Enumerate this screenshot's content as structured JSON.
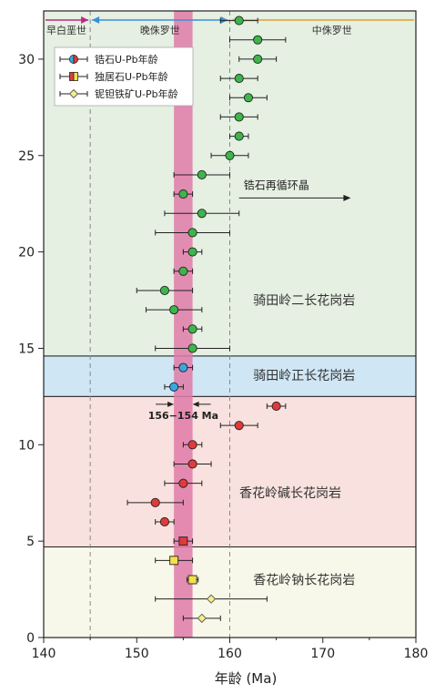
{
  "chart_data": {
    "type": "scatter",
    "xlabel": "年龄 (Ma)",
    "xlim": [
      140,
      180
    ],
    "ylim": [
      0,
      32.5
    ],
    "x_ticks": [
      140,
      150,
      160,
      170,
      180
    ],
    "y_ticks": [
      0,
      5,
      10,
      15,
      20,
      25,
      30
    ],
    "epochs": [
      {
        "name": "早白垩世",
        "from": 140,
        "to": 145,
        "color": "#c0267f"
      },
      {
        "name": "晚侏罗世",
        "from": 145,
        "to": 160,
        "color": "#3a8fd6"
      },
      {
        "name": "中侏罗世",
        "from": 160,
        "to": 180,
        "color": "#e0a030"
      }
    ],
    "boundaries": [
      145,
      160
    ],
    "highlight_band": {
      "from": 154,
      "to": 156,
      "label": "156−154 Ma",
      "color": "#e07aa8"
    },
    "annotation": {
      "text": "锆石再循环晶",
      "arrow_from": 161,
      "arrow_to": 173,
      "y": 22.8
    },
    "zones": [
      {
        "name": "骑田岭二长花岗岩",
        "y_from": 14.6,
        "y_to": 32.5,
        "color": "#e5efe2",
        "label_x": 168,
        "label_y": 17.5
      },
      {
        "name": "骑田岭正长花岗岩",
        "y_from": 12.5,
        "y_to": 14.6,
        "color": "#cfe6f4",
        "label_x": 168,
        "label_y": 13.6
      },
      {
        "name": "香花岭碱长花岗岩",
        "y_from": 4.7,
        "y_to": 12.5,
        "color": "#f8e1de",
        "label_x": 166.5,
        "label_y": 7.5
      },
      {
        "name": "香花岭钠长花岗岩",
        "y_from": 0,
        "y_to": 4.7,
        "color": "#f8f8ea",
        "label_x": 168,
        "label_y": 3.0
      }
    ],
    "legend": [
      {
        "name": "锆石U-Pb年龄",
        "marker": "circle",
        "fill": "#3aa8e0",
        "fill2": "#e03a3a"
      },
      {
        "name": "独居石U-Pb年龄",
        "marker": "square",
        "fill": "#f4e04a",
        "fill2": "#e03a3a"
      },
      {
        "name": "铌钽铁矿U-Pb年龄",
        "marker": "diamond",
        "fill": "#f4ee8a"
      }
    ],
    "series": [
      {
        "name": "zircon_green",
        "marker": "circle",
        "color": "#3db54a",
        "points": [
          {
            "y": 32,
            "x": 161,
            "err": 2
          },
          {
            "y": 31,
            "x": 163,
            "err": 3
          },
          {
            "y": 30,
            "x": 163,
            "err": 2
          },
          {
            "y": 29,
            "x": 161,
            "err": 2
          },
          {
            "y": 28,
            "x": 162,
            "err": 2
          },
          {
            "y": 27,
            "x": 161,
            "err": 2
          },
          {
            "y": 26,
            "x": 161,
            "err": 1
          },
          {
            "y": 25,
            "x": 160,
            "err": 2
          },
          {
            "y": 24,
            "x": 157,
            "err": 3
          },
          {
            "y": 23,
            "x": 155,
            "err": 1
          },
          {
            "y": 22,
            "x": 157,
            "err": 4
          },
          {
            "y": 21,
            "x": 156,
            "err": 4
          },
          {
            "y": 20,
            "x": 156,
            "err": 1
          },
          {
            "y": 19,
            "x": 155,
            "err": 1
          },
          {
            "y": 18,
            "x": 153,
            "err": 3
          },
          {
            "y": 17,
            "x": 154,
            "err": 3
          },
          {
            "y": 16,
            "x": 156,
            "err": 1
          },
          {
            "y": 15,
            "x": 156,
            "err": 4
          }
        ]
      },
      {
        "name": "zircon_blue",
        "marker": "circle",
        "color": "#3aa8e0",
        "points": [
          {
            "y": 14,
            "x": 155,
            "err": 1
          },
          {
            "y": 13,
            "x": 154,
            "err": 1
          }
        ]
      },
      {
        "name": "zircon_red",
        "marker": "circle",
        "color": "#e03a3a",
        "points": [
          {
            "y": 12,
            "x": 165,
            "err": 1
          },
          {
            "y": 11,
            "x": 161,
            "err": 2
          },
          {
            "y": 10,
            "x": 156,
            "err": 1
          },
          {
            "y": 9,
            "x": 156,
            "err": 2
          },
          {
            "y": 8,
            "x": 155,
            "err": 2
          },
          {
            "y": 7,
            "x": 152,
            "err": 3
          },
          {
            "y": 6,
            "x": 153,
            "err": 1
          }
        ]
      },
      {
        "name": "monazite_red",
        "marker": "square",
        "color": "#e03a3a",
        "points": [
          {
            "y": 5,
            "x": 155,
            "err": 1
          }
        ]
      },
      {
        "name": "monazite_yellow",
        "marker": "square",
        "color": "#f4e04a",
        "points": [
          {
            "y": 4,
            "x": 154,
            "err": 2
          },
          {
            "y": 3,
            "x": 156,
            "err": 0.6
          }
        ]
      },
      {
        "name": "columbite",
        "marker": "diamond",
        "color": "#f4ee8a",
        "points": [
          {
            "y": 2,
            "x": 158,
            "err": 6
          },
          {
            "y": 1,
            "x": 157,
            "err": 2
          }
        ]
      }
    ]
  }
}
